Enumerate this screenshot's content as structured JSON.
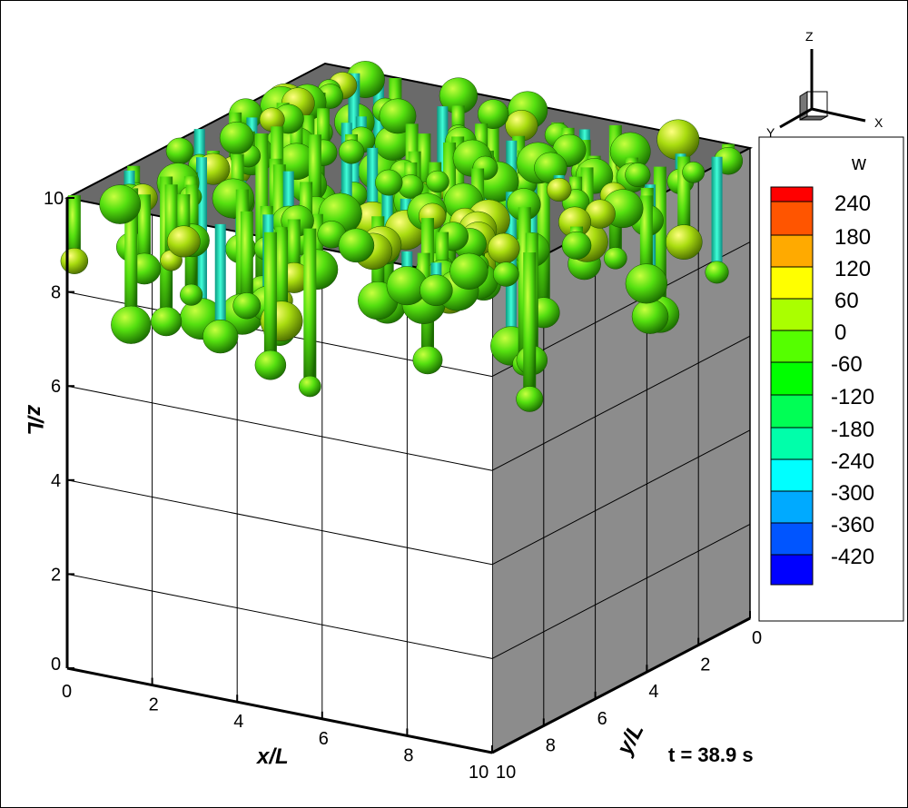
{
  "chart_data": {
    "type": "3d-isosurface",
    "axes": {
      "x": {
        "label": "x/L",
        "range": [
          0,
          10
        ],
        "ticks": [
          "0",
          "2",
          "4",
          "6",
          "8",
          "10"
        ]
      },
      "y": {
        "label": "y/L",
        "range": [
          0,
          10
        ],
        "ticks": [
          "0",
          "2",
          "4",
          "6",
          "8",
          "10"
        ]
      },
      "z": {
        "label": "z/L",
        "range": [
          0,
          10
        ],
        "ticks": [
          "0",
          "2",
          "4",
          "6",
          "8",
          "10"
        ]
      }
    },
    "grid": true,
    "side_wall_color": "#8c8c8c",
    "legend": {
      "title": "w",
      "placement": "right",
      "levels": [
        "240",
        "180",
        "120",
        "60",
        "0",
        "-60",
        "-120",
        "-180",
        "-240",
        "-300",
        "-360",
        "-420"
      ],
      "colors": [
        "#ff0000",
        "#ff5500",
        "#ffaa00",
        "#ffff00",
        "#aaff00",
        "#55ff00",
        "#00ff00",
        "#00ff55",
        "#00ffaa",
        "#00ffff",
        "#00aaff",
        "#0055ff",
        "#0000ff"
      ]
    },
    "triad": {
      "x": "X",
      "y": "Y",
      "z": "Z"
    },
    "annotation": "t = 38.9 s"
  }
}
